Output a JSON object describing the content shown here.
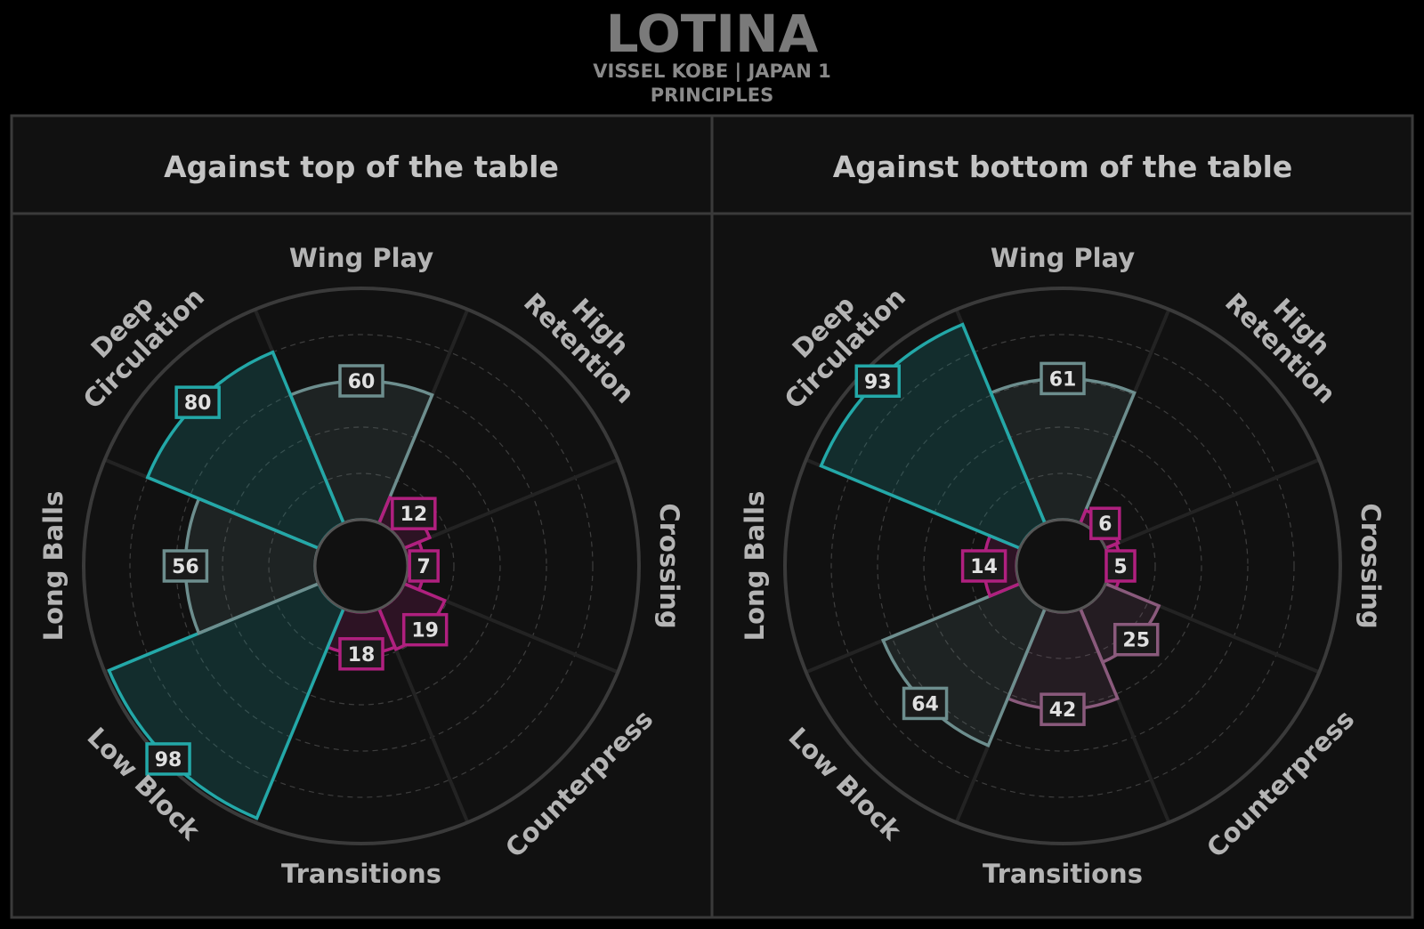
{
  "header": {
    "title": "LOTINA",
    "subtitle_line1": "VISSEL KOBE | JAPAN 1",
    "subtitle_line2": "PRINCIPLES"
  },
  "colors": {
    "background": "#000000",
    "panel": "#111111",
    "ring": "#3a3a3a",
    "spoke": "#232323",
    "teal": "#23a8a8",
    "slate": "#6d8e8e",
    "magenta": "#b0207f",
    "mauve": "#8a5a7c"
  },
  "chart_data": [
    {
      "type": "polar-bar",
      "title": "Against top of the table",
      "categories": [
        {
          "label": "Wing Play",
          "lines": [
            "Wing Play"
          ]
        },
        {
          "label": "High Retention",
          "lines": [
            "High",
            "Retention"
          ]
        },
        {
          "label": "Crossing",
          "lines": [
            "Crossing"
          ]
        },
        {
          "label": "Counterpress",
          "lines": [
            "Counterpress"
          ]
        },
        {
          "label": "Transitions",
          "lines": [
            "Transitions"
          ]
        },
        {
          "label": "Low Block",
          "lines": [
            "Low Block"
          ]
        },
        {
          "label": "Long Balls",
          "lines": [
            "Long Balls"
          ]
        },
        {
          "label": "Deep Circulation",
          "lines": [
            "Deep",
            "Circulation"
          ]
        }
      ],
      "values": [
        60,
        12,
        7,
        19,
        18,
        98,
        56,
        80
      ],
      "value_labels": [
        "60",
        "12",
        "7",
        "19",
        "18",
        "98",
        "56",
        "80"
      ],
      "range": [
        0,
        100
      ]
    },
    {
      "type": "polar-bar",
      "title": "Against bottom of the table",
      "categories": [
        {
          "label": "Wing Play",
          "lines": [
            "Wing Play"
          ]
        },
        {
          "label": "High Retention",
          "lines": [
            "High",
            "Retention"
          ]
        },
        {
          "label": "Crossing",
          "lines": [
            "Crossing"
          ]
        },
        {
          "label": "Counterpress",
          "lines": [
            "Counterpress"
          ]
        },
        {
          "label": "Transitions",
          "lines": [
            "Transitions"
          ]
        },
        {
          "label": "Low Block",
          "lines": [
            "Low Block"
          ]
        },
        {
          "label": "Long Balls",
          "lines": [
            "Long Balls"
          ]
        },
        {
          "label": "Deep Circulation",
          "lines": [
            "Deep",
            "Circulation"
          ]
        }
      ],
      "values": [
        61,
        6,
        5,
        25,
        42,
        64,
        14,
        93
      ],
      "value_labels": [
        "61",
        "6",
        "5",
        "25",
        "42",
        "64",
        "14",
        "93"
      ],
      "range": [
        0,
        100
      ]
    }
  ]
}
